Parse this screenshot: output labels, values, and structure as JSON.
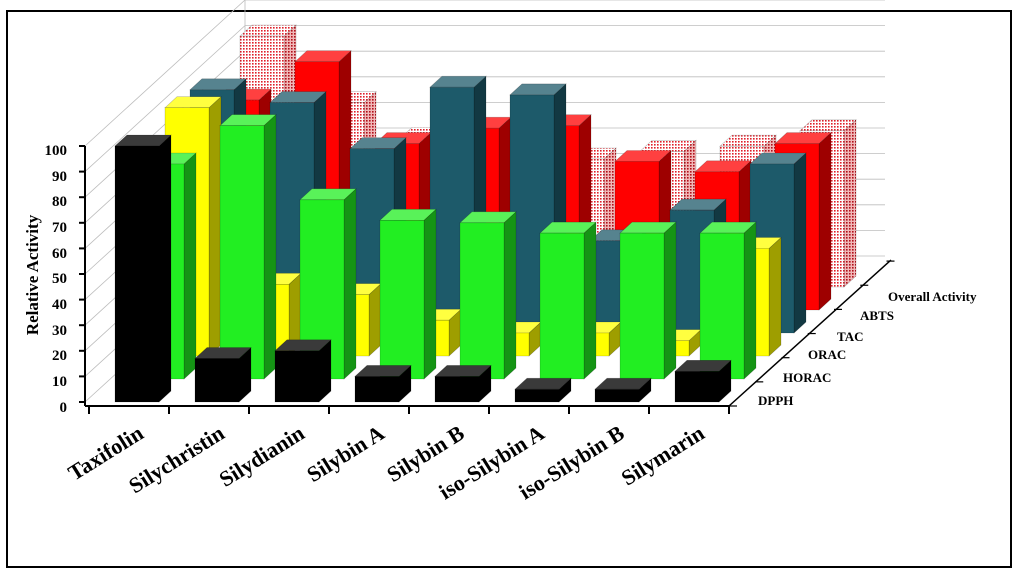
{
  "chart_data": {
    "type": "bar",
    "style": "3d-clustered",
    "ylabel": "Relative Activity",
    "ylim": [
      0,
      100
    ],
    "yticks": [
      "0",
      "10",
      "20",
      "30",
      "40",
      "50",
      "60",
      "70",
      "80",
      "90",
      "100"
    ],
    "grid": true,
    "categories": [
      "Taxifolin",
      "Silychristin",
      "Silydianin",
      "Silybin A",
      "Silybin B",
      "iso-Silybin A",
      "iso-Silybin B",
      "Silymarin"
    ],
    "series": [
      {
        "name": "DPPH",
        "color": "#000000",
        "values": [
          100,
          17,
          20,
          10,
          10,
          5,
          5,
          12
        ]
      },
      {
        "name": "HORAC",
        "color": "#22ee22",
        "values": [
          84,
          99,
          70,
          62,
          61,
          57,
          57,
          57
        ]
      },
      {
        "name": "ORAC",
        "color": "#ffff00",
        "values": [
          97,
          28,
          24,
          14,
          9,
          9,
          6,
          42
        ]
      },
      {
        "name": "TAC",
        "color": "#1d5a6a",
        "values": [
          95,
          90,
          72,
          96,
          93,
          36,
          48,
          66
        ]
      },
      {
        "name": "ABTS",
        "color": "#ff0000",
        "values": [
          82,
          97,
          65,
          71,
          72,
          58,
          54,
          65
        ]
      },
      {
        "name": "Overall Activity",
        "color": "#f4a0a0",
        "pattern": "hatched",
        "values": [
          98,
          72,
          58,
          48,
          50,
          53,
          55,
          61
        ]
      }
    ],
    "legend_position": "depth-axis-right"
  }
}
